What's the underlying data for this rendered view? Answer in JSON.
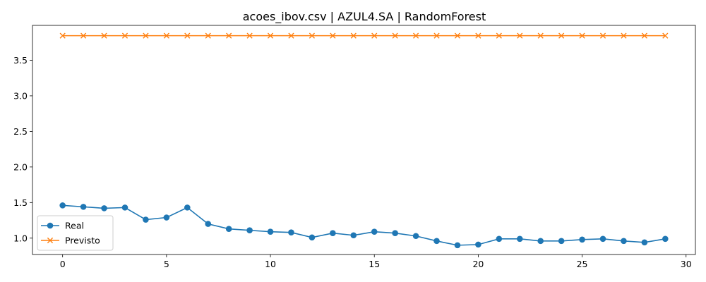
{
  "chart_data": {
    "type": "line",
    "title": "acoes_ibov.csv | AZUL4.SA | RandomForest",
    "xlabel": "",
    "ylabel": "",
    "xlim": [
      -1.45,
      30.45
    ],
    "ylim": [
      0.77,
      3.99
    ],
    "xticks": [
      0,
      5,
      10,
      15,
      20,
      25,
      30
    ],
    "yticks": [
      1.0,
      1.5,
      2.0,
      2.5,
      3.0,
      3.5
    ],
    "ytick_labels": [
      "1.0",
      "1.5",
      "2.0",
      "2.5",
      "3.0",
      "3.5"
    ],
    "grid": false,
    "legend_position": "lower-left",
    "x": [
      0,
      1,
      2,
      3,
      4,
      5,
      6,
      7,
      8,
      9,
      10,
      11,
      12,
      13,
      14,
      15,
      16,
      17,
      18,
      19,
      20,
      21,
      22,
      23,
      24,
      25,
      26,
      27,
      28,
      29
    ],
    "series": [
      {
        "name": "Real",
        "color": "#1f77b4",
        "marker": "circle",
        "values": [
          1.46,
          1.44,
          1.42,
          1.43,
          1.26,
          1.29,
          1.43,
          1.2,
          1.13,
          1.11,
          1.09,
          1.08,
          1.01,
          1.07,
          1.04,
          1.09,
          1.07,
          1.03,
          0.96,
          0.9,
          0.91,
          0.99,
          0.99,
          0.96,
          0.96,
          0.98,
          0.99,
          0.96,
          0.94,
          0.99
        ]
      },
      {
        "name": "Previsto",
        "color": "#ff7f0e",
        "marker": "x",
        "values": [
          3.845,
          3.845,
          3.845,
          3.845,
          3.845,
          3.845,
          3.845,
          3.845,
          3.845,
          3.845,
          3.845,
          3.845,
          3.845,
          3.845,
          3.845,
          3.845,
          3.845,
          3.845,
          3.845,
          3.845,
          3.845,
          3.845,
          3.845,
          3.845,
          3.845,
          3.845,
          3.845,
          3.845,
          3.845,
          3.845
        ]
      }
    ]
  }
}
